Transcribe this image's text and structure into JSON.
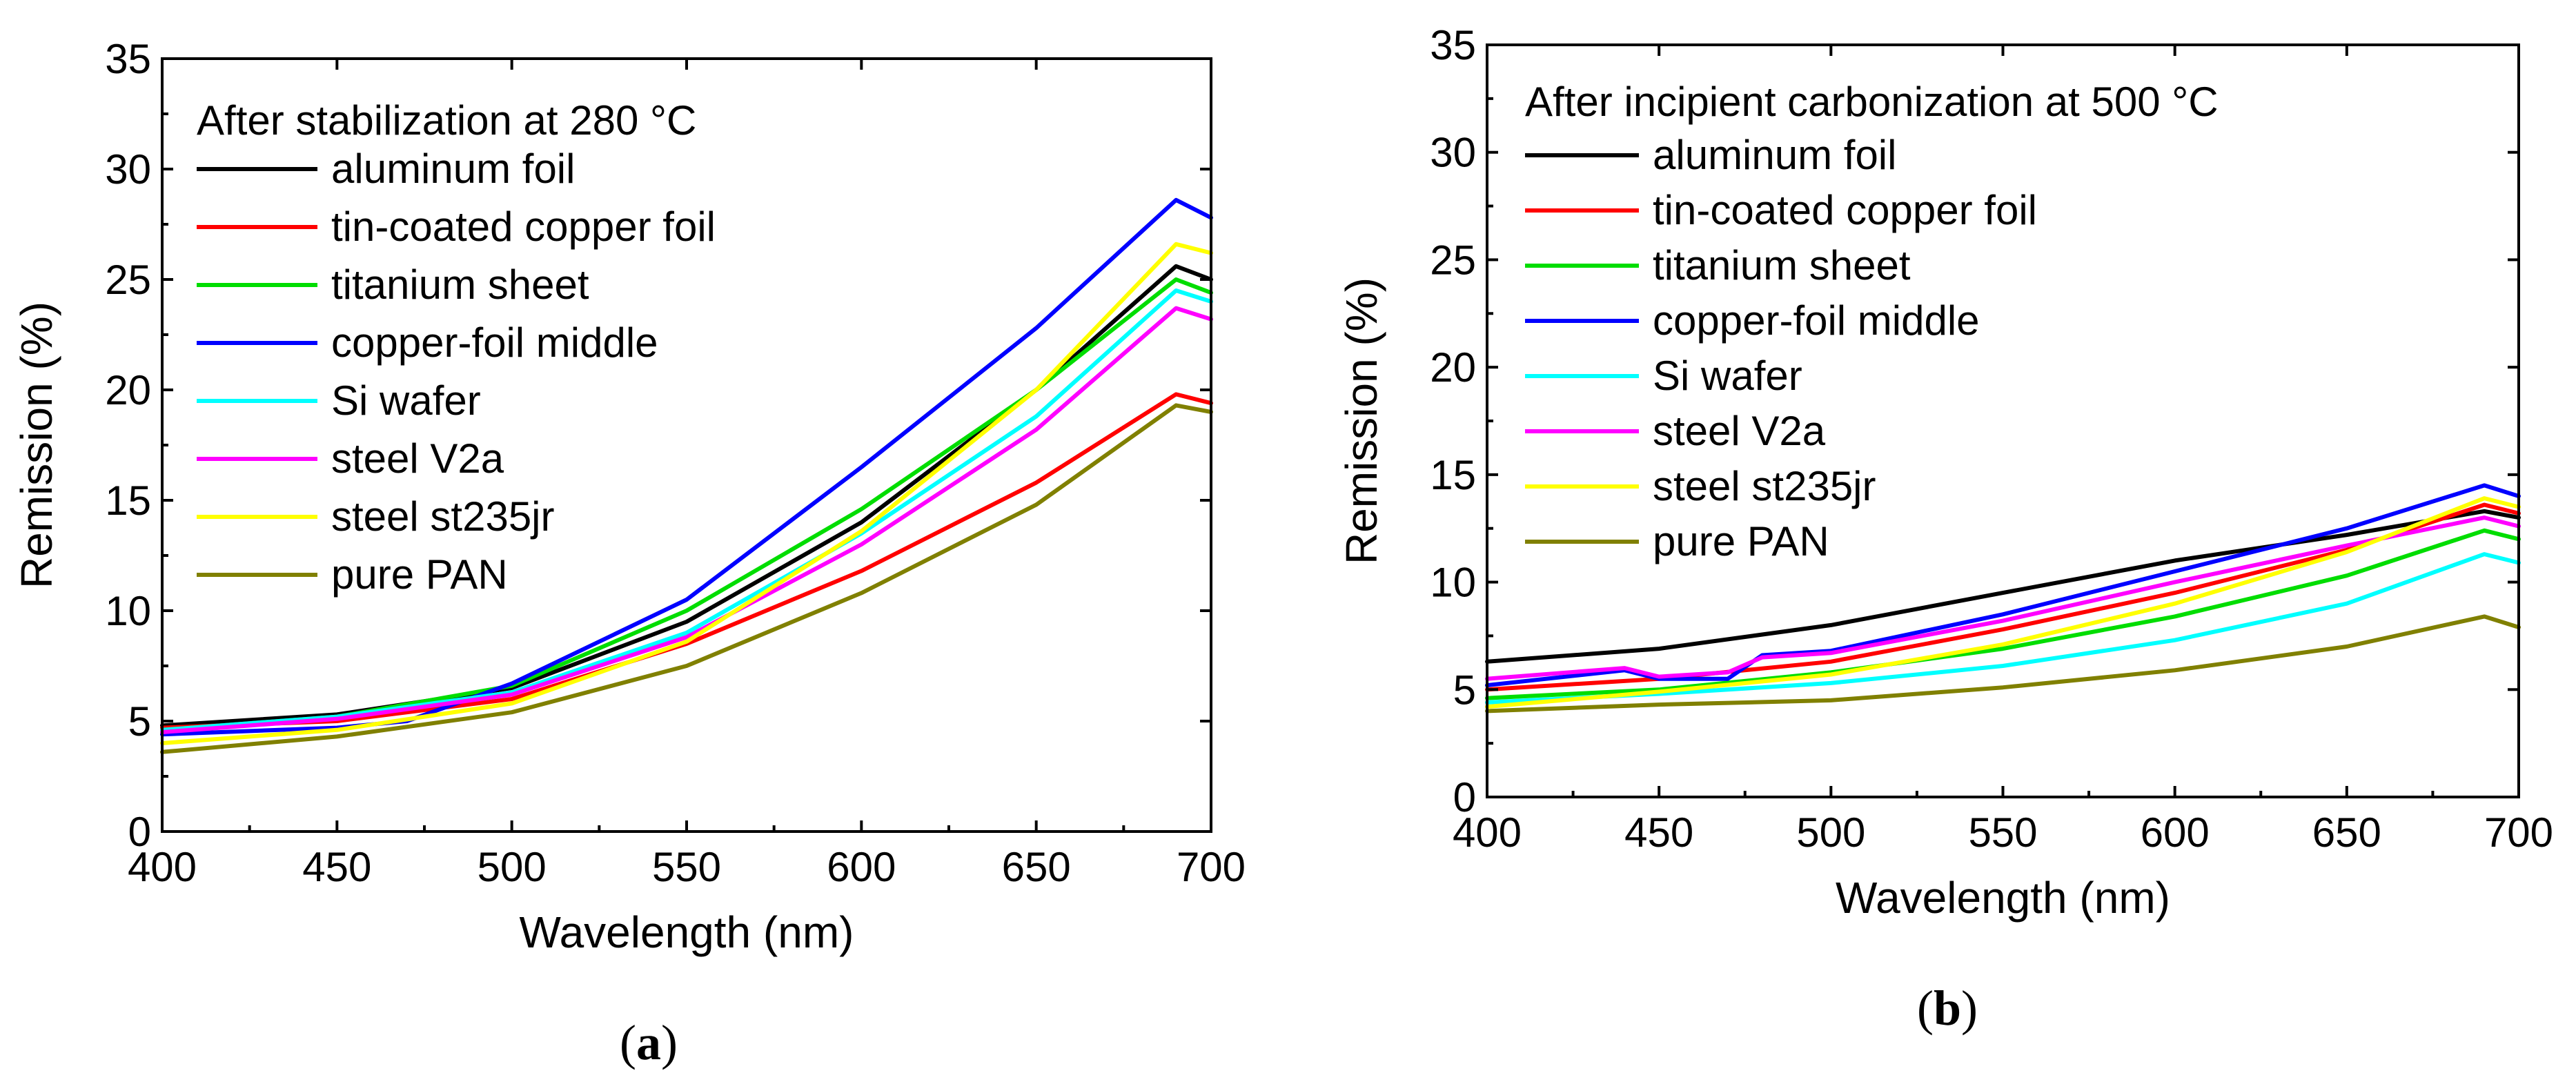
{
  "chart_data": [
    {
      "type": "line",
      "panel_label": "a",
      "title": "After stabilization at 280 °C",
      "xlabel": "Wavelength (nm)",
      "ylabel": "Remission (%)",
      "xlim": [
        400,
        700
      ],
      "ylim": [
        0,
        35
      ],
      "xticks": [
        400,
        450,
        500,
        550,
        600,
        650,
        700
      ],
      "yticks": [
        0,
        5,
        10,
        15,
        20,
        25,
        30,
        35
      ],
      "legend_position": "top-left",
      "series": [
        {
          "name": "aluminum foil",
          "color": "#000000",
          "x": [
            400,
            450,
            500,
            550,
            600,
            650,
            690,
            700
          ],
          "y": [
            4.8,
            5.3,
            6.5,
            9.5,
            14.0,
            20.0,
            25.6,
            25.0
          ]
        },
        {
          "name": "tin-coated copper foil",
          "color": "#ff0000",
          "x": [
            400,
            450,
            500,
            550,
            600,
            650,
            690,
            700
          ],
          "y": [
            4.7,
            5.0,
            6.0,
            8.5,
            11.8,
            15.8,
            19.8,
            19.4
          ]
        },
        {
          "name": "titanium sheet",
          "color": "#00dd00",
          "x": [
            400,
            450,
            500,
            550,
            600,
            650,
            690,
            700
          ],
          "y": [
            4.6,
            5.2,
            6.6,
            10.0,
            14.6,
            20.0,
            25.0,
            24.4
          ]
        },
        {
          "name": "copper-foil middle",
          "color": "#0000ff",
          "x": [
            400,
            450,
            470,
            500,
            550,
            600,
            650,
            690,
            700
          ],
          "y": [
            4.4,
            4.7,
            5.0,
            6.7,
            10.5,
            16.5,
            22.8,
            28.6,
            27.8
          ]
        },
        {
          "name": "Si wafer",
          "color": "#00ffff",
          "x": [
            400,
            450,
            500,
            550,
            600,
            650,
            690,
            700
          ],
          "y": [
            4.6,
            5.2,
            6.3,
            9.0,
            13.5,
            18.8,
            24.5,
            24.0
          ]
        },
        {
          "name": "steel V2a",
          "color": "#ff00ff",
          "x": [
            400,
            450,
            500,
            550,
            600,
            650,
            690,
            700
          ],
          "y": [
            4.5,
            5.1,
            6.2,
            8.8,
            13.0,
            18.2,
            23.7,
            23.2
          ]
        },
        {
          "name": "steel st235jr",
          "color": "#ffff00",
          "x": [
            400,
            450,
            500,
            550,
            600,
            650,
            690,
            700
          ],
          "y": [
            4.0,
            4.6,
            5.8,
            8.6,
            13.6,
            20.0,
            26.6,
            26.2
          ]
        },
        {
          "name": "pure PAN",
          "color": "#808000",
          "x": [
            400,
            450,
            500,
            550,
            600,
            650,
            690,
            700
          ],
          "y": [
            3.6,
            4.3,
            5.4,
            7.5,
            10.8,
            14.8,
            19.3,
            19.0
          ]
        }
      ]
    },
    {
      "type": "line",
      "panel_label": "b",
      "title": "After incipient carbonization at 500 °C",
      "xlabel": "Wavelength (nm)",
      "ylabel": "Remission (%)",
      "xlim": [
        400,
        700
      ],
      "ylim": [
        0,
        35
      ],
      "xticks": [
        400,
        450,
        500,
        550,
        600,
        650,
        700
      ],
      "yticks": [
        0,
        5,
        10,
        15,
        20,
        25,
        30,
        35
      ],
      "legend_position": "top-left",
      "series": [
        {
          "name": "aluminum foil",
          "color": "#000000",
          "x": [
            400,
            450,
            500,
            550,
            600,
            650,
            690,
            700
          ],
          "y": [
            6.3,
            6.9,
            8.0,
            9.5,
            11.0,
            12.2,
            13.3,
            13.0
          ]
        },
        {
          "name": "tin-coated copper foil",
          "color": "#ff0000",
          "x": [
            400,
            450,
            500,
            550,
            600,
            650,
            690,
            700
          ],
          "y": [
            5.0,
            5.5,
            6.3,
            7.8,
            9.5,
            11.5,
            13.6,
            13.2
          ]
        },
        {
          "name": "titanium sheet",
          "color": "#00dd00",
          "x": [
            400,
            450,
            500,
            550,
            600,
            650,
            690,
            700
          ],
          "y": [
            4.6,
            5.0,
            5.8,
            6.9,
            8.4,
            10.3,
            12.4,
            12.0
          ]
        },
        {
          "name": "copper-foil middle",
          "color": "#0000ff",
          "x": [
            400,
            440,
            450,
            470,
            480,
            500,
            550,
            600,
            650,
            690,
            700
          ],
          "y": [
            5.2,
            5.9,
            5.5,
            5.5,
            6.6,
            6.8,
            8.5,
            10.5,
            12.5,
            14.5,
            14.0
          ]
        },
        {
          "name": "Si wafer",
          "color": "#00ffff",
          "x": [
            400,
            450,
            500,
            550,
            600,
            650,
            690,
            700
          ],
          "y": [
            4.4,
            4.8,
            5.3,
            6.1,
            7.3,
            9.0,
            11.3,
            10.9
          ]
        },
        {
          "name": "steel V2a",
          "color": "#ff00ff",
          "x": [
            400,
            440,
            450,
            470,
            480,
            500,
            550,
            600,
            650,
            690,
            700
          ],
          "y": [
            5.5,
            6.0,
            5.6,
            5.8,
            6.5,
            6.7,
            8.2,
            10.0,
            11.7,
            13.0,
            12.6
          ]
        },
        {
          "name": "steel st235jr",
          "color": "#ffff00",
          "x": [
            400,
            450,
            500,
            550,
            600,
            650,
            690,
            700
          ],
          "y": [
            4.2,
            4.9,
            5.7,
            7.1,
            9.0,
            11.4,
            13.9,
            13.5
          ]
        },
        {
          "name": "pure PAN",
          "color": "#808000",
          "x": [
            400,
            450,
            500,
            550,
            600,
            650,
            690,
            700
          ],
          "y": [
            4.0,
            4.3,
            4.5,
            5.1,
            5.9,
            7.0,
            8.4,
            7.9
          ]
        }
      ]
    }
  ]
}
